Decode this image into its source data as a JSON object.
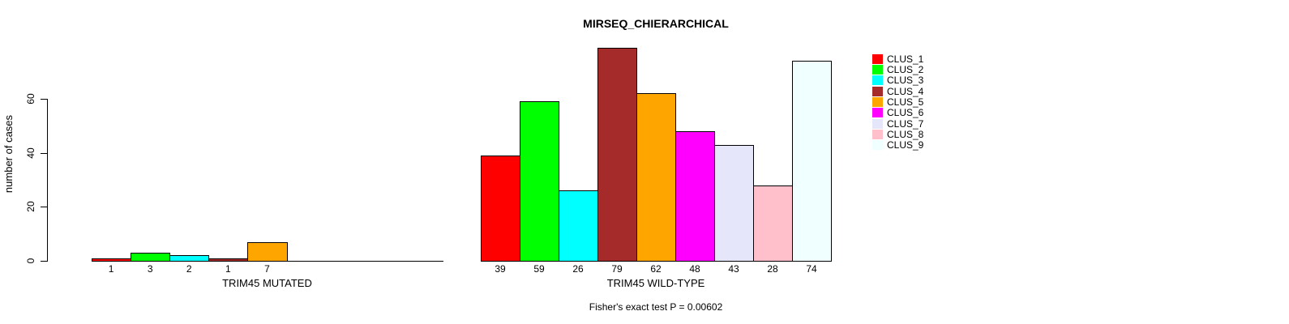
{
  "title": "MIRSEQ_CHIERARCHICAL",
  "footer": "Fisher's exact test P = 0.00602",
  "y_axis": {
    "label": "number of cases",
    "ticks": [
      "0",
      "20",
      "40",
      "60"
    ]
  },
  "legend": {
    "entries": [
      {
        "label": "CLUS_1",
        "color": "#FF0000"
      },
      {
        "label": "CLUS_2",
        "color": "#00FF00"
      },
      {
        "label": "CLUS_3",
        "color": "#00FFFF"
      },
      {
        "label": "CLUS_4",
        "color": "#A52A2A"
      },
      {
        "label": "CLUS_5",
        "color": "#FFA500"
      },
      {
        "label": "CLUS_6",
        "color": "#FF00FF"
      },
      {
        "label": "CLUS_7",
        "color": "#E6E6FA"
      },
      {
        "label": "CLUS_8",
        "color": "#FFC0CB"
      },
      {
        "label": "CLUS_9",
        "color": "#F0FFFF"
      }
    ]
  },
  "chart_data": {
    "type": "bar",
    "title": "MIRSEQ_CHIERARCHICAL",
    "ylabel": "number of cases",
    "xlabel": "",
    "yticks": [
      0,
      20,
      40,
      60
    ],
    "ylim": [
      0,
      79
    ],
    "grid": false,
    "legend_position": "top-right",
    "categories": [
      "CLUS_1",
      "CLUS_2",
      "CLUS_3",
      "CLUS_4",
      "CLUS_5",
      "CLUS_6",
      "CLUS_7",
      "CLUS_8",
      "CLUS_9"
    ],
    "colors": [
      "#FF0000",
      "#00FF00",
      "#00FFFF",
      "#A52A2A",
      "#FFA500",
      "#FF00FF",
      "#E6E6FA",
      "#FFC0CB",
      "#F0FFFF"
    ],
    "groups": [
      {
        "label": "TRIM45 MUTATED",
        "values": [
          1,
          3,
          2,
          1,
          7,
          0,
          0,
          0,
          0
        ]
      },
      {
        "label": "TRIM45 WILD-TYPE",
        "values": [
          39,
          59,
          26,
          79,
          62,
          48,
          43,
          28,
          74
        ]
      }
    ],
    "annotation": "Fisher's exact test P = 0.00602"
  }
}
